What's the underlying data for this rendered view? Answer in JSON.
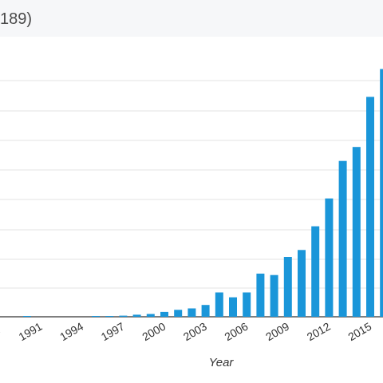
{
  "header": {
    "title": "189)"
  },
  "chart_data": {
    "type": "bar",
    "title": "",
    "xlabel": "Year",
    "ylabel": "",
    "x_ticks": [
      "1991",
      "1994",
      "1997",
      "2000",
      "2003",
      "2006",
      "2009",
      "2012",
      "2015"
    ],
    "partial_left_tick": "8",
    "categories": [
      1989,
      1990,
      1991,
      1992,
      1993,
      1994,
      1995,
      1996,
      1997,
      1998,
      1999,
      2000,
      2001,
      2002,
      2003,
      2004,
      2005,
      2006,
      2007,
      2008,
      2009,
      2010,
      2011,
      2012,
      2013,
      2014,
      2015,
      2016,
      2017
    ],
    "values": [
      0,
      0,
      0.3,
      0,
      0,
      0,
      0,
      0.2,
      0.3,
      0.8,
      1.5,
      2,
      3.5,
      5,
      6,
      8.5,
      17.5,
      14,
      17.5,
      31,
      30,
      43,
      48,
      65,
      85,
      112,
      122,
      158,
      178
    ],
    "ylim": [
      0,
      215
    ],
    "grid": true,
    "bar_color": "#1a96d9"
  }
}
